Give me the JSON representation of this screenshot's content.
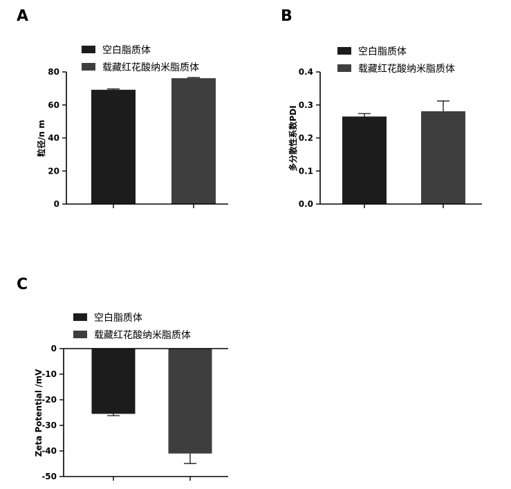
{
  "figure": {
    "panels": [
      {
        "letter": "A",
        "ylabel": "粒径/n m",
        "legend": [
          "空白脂质体",
          "载藏红花酸纳米脂质体"
        ],
        "tick_labels": [
          "0",
          "20",
          "40",
          "60",
          "80"
        ]
      },
      {
        "letter": "B",
        "ylabel": "多分散性系数PDI",
        "legend": [
          "空白脂质体",
          "载藏红花酸纳米脂质体"
        ],
        "tick_labels": [
          "0.0",
          "0.1",
          "0.2",
          "0.3",
          "0.4"
        ]
      },
      {
        "letter": "C",
        "ylabel": "Zeta Potential /mV",
        "legend": [
          "空白脂质体",
          "载藏红花酸纳米脂质体"
        ],
        "tick_labels": [
          "0",
          "-10",
          "-20",
          "-30",
          "-40",
          "-50"
        ]
      }
    ]
  },
  "colors": {
    "series_1": "#1c1c1c",
    "series_2": "#3e3e3e",
    "axis": "#000000"
  },
  "chart_data": [
    {
      "type": "bar",
      "title": "A",
      "categories": [
        "空白脂质体",
        "载藏红花酸纳米脂质体"
      ],
      "series": [
        {
          "values": [
            69.2,
            76.2
          ],
          "errors": [
            0.5,
            0.4
          ]
        }
      ],
      "ylabel": "粒径/n m",
      "ylim": [
        0,
        80
      ],
      "yticks": [
        0,
        20,
        40,
        60,
        80
      ],
      "legend": {
        "entries": [
          "空白脂质体",
          "载藏红花酸纳米脂质体"
        ],
        "placement": "top-left"
      },
      "grid": false
    },
    {
      "type": "bar",
      "title": "B",
      "categories": [
        "空白脂质体",
        "载藏红花酸纳米脂质体"
      ],
      "series": [
        {
          "values": [
            0.265,
            0.281
          ],
          "errors": [
            0.009,
            0.031
          ]
        }
      ],
      "ylabel": "多分散性系数PDI",
      "ylim": [
        0,
        0.4
      ],
      "yticks": [
        0,
        0.1,
        0.2,
        0.3,
        0.4
      ],
      "legend": {
        "entries": [
          "空白脂质体",
          "载藏红花酸纳米脂质体"
        ],
        "placement": "top-left"
      },
      "grid": false
    },
    {
      "type": "bar",
      "title": "C",
      "categories": [
        "空白脂质体",
        "载藏红花酸纳米脂质体"
      ],
      "series": [
        {
          "values": [
            -25.5,
            -41.0
          ],
          "errors": [
            0.7,
            3.9
          ]
        }
      ],
      "ylabel": "Zeta Potential /mV",
      "ylim": [
        -50,
        0
      ],
      "yticks": [
        0,
        -10,
        -20,
        -30,
        -40,
        -50
      ],
      "legend": {
        "entries": [
          "空白脂质体",
          "载藏红花酸纳米脂质体"
        ],
        "placement": "top-left"
      },
      "grid": false
    }
  ]
}
